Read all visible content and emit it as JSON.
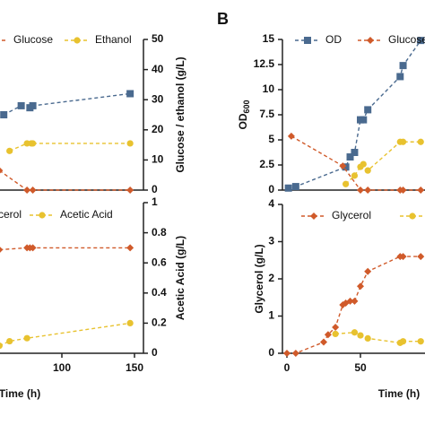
{
  "panel_label": "B",
  "chart_data": [
    {
      "type": "line",
      "xlim": [
        0,
        150
      ],
      "ylim": [
        0,
        15
      ],
      "y2lim": [
        0,
        50
      ],
      "y2ticks": [
        0,
        10,
        20,
        30,
        40,
        50
      ],
      "y2label": "Glucose / ethanol (g/L)",
      "series": [
        {
          "color": "#4a6a8f",
          "marker": "square",
          "x": [
            60,
            72,
            78,
            80,
            147
          ],
          "values": [
            7.5,
            8.4,
            8.2,
            8.4,
            9.6
          ]
        },
        {
          "name": "Glucose",
          "color": "#d05a2a",
          "marker": "diamond",
          "axis": "y2",
          "x": [
            57,
            76,
            80,
            147
          ],
          "values": [
            6.5,
            0,
            0,
            0
          ]
        },
        {
          "name": "Ethanol",
          "color": "#e8c22f",
          "marker": "circle",
          "axis": "y2",
          "x": [
            64,
            76,
            79,
            80,
            147
          ],
          "values": [
            13,
            15.5,
            15.5,
            15.5,
            15.5
          ]
        }
      ]
    },
    {
      "type": "line",
      "xlim": [
        0,
        150
      ],
      "xticks": [
        100,
        150
      ],
      "xlabel": "Time (h)",
      "ylim": [
        0,
        4
      ],
      "y2lim": [
        0,
        1
      ],
      "y2ticks": [
        0.0,
        0.2,
        0.4,
        0.6,
        0.8,
        1.0
      ],
      "y2label": "Acetic Acid (g/L)",
      "series": [
        {
          "name": "Glycerol",
          "color": "#d05a2a",
          "marker": "diamond",
          "x": [
            57,
            76,
            78,
            80,
            147
          ],
          "values": [
            2.75,
            2.8,
            2.8,
            2.8,
            2.8
          ]
        },
        {
          "name": "Acetic Acid",
          "color": "#e8c22f",
          "marker": "circle",
          "axis": "y2",
          "x": [
            57,
            64,
            76,
            147
          ],
          "values": [
            0.05,
            0.08,
            0.1,
            0.2
          ]
        }
      ]
    },
    {
      "type": "line",
      "xlim": [
        0,
        100
      ],
      "ylim": [
        0,
        15
      ],
      "yticks": [
        0.0,
        2.5,
        5.0,
        7.5,
        10.0,
        12.5,
        15.0
      ],
      "ylabel": "OD",
      "ylabel_sub": "600",
      "y2lim": [
        0,
        50
      ],
      "series": [
        {
          "name": "OD",
          "color": "#4a6a8f",
          "marker": "square",
          "x": [
            1,
            6,
            40,
            43,
            46,
            50,
            52,
            55,
            77,
            79,
            91
          ],
          "values": [
            0.2,
            0.35,
            2.3,
            3.3,
            3.75,
            7.0,
            7.0,
            8.0,
            11.3,
            12.4,
            14.9
          ]
        },
        {
          "name": "Glucose",
          "color": "#d05a2a",
          "marker": "diamond",
          "axis": "y2",
          "x": [
            3,
            38,
            50,
            55,
            77,
            79,
            91
          ],
          "values": [
            17.9,
            8,
            0,
            0,
            0,
            0,
            0
          ]
        },
        {
          "color": "#e8c22f",
          "marker": "circle",
          "axis": "y2",
          "x": [
            40,
            46,
            50,
            52,
            55,
            77,
            79,
            91
          ],
          "values": [
            2,
            4.8,
            7.7,
            8.6,
            6.5,
            16,
            16,
            16
          ]
        }
      ]
    },
    {
      "type": "line",
      "xlim": [
        0,
        100
      ],
      "xticks": [
        0,
        50
      ],
      "xlabel": "Time (h)",
      "ylim": [
        0,
        4
      ],
      "yticks": [
        0,
        1,
        2,
        3,
        4
      ],
      "ylabel": "Glycerol (g/L)",
      "y2lim": [
        0,
        1
      ],
      "series": [
        {
          "name": "Glycerol",
          "color": "#d05a2a",
          "marker": "diamond",
          "x": [
            0,
            6,
            25,
            28,
            33,
            38,
            40,
            43,
            46,
            50,
            55,
            77,
            79,
            91
          ],
          "values": [
            0,
            0,
            0.3,
            0.5,
            0.7,
            1.3,
            1.35,
            1.4,
            1.4,
            1.8,
            2.2,
            2.6,
            2.6,
            2.6
          ]
        },
        {
          "color": "#e8c22f",
          "marker": "circle",
          "axis": "y2",
          "x": [
            33,
            46,
            50,
            55,
            77,
            79,
            91
          ],
          "values": [
            0.13,
            0.14,
            0.12,
            0.1,
            0.07,
            0.08,
            0.08
          ]
        }
      ]
    }
  ]
}
